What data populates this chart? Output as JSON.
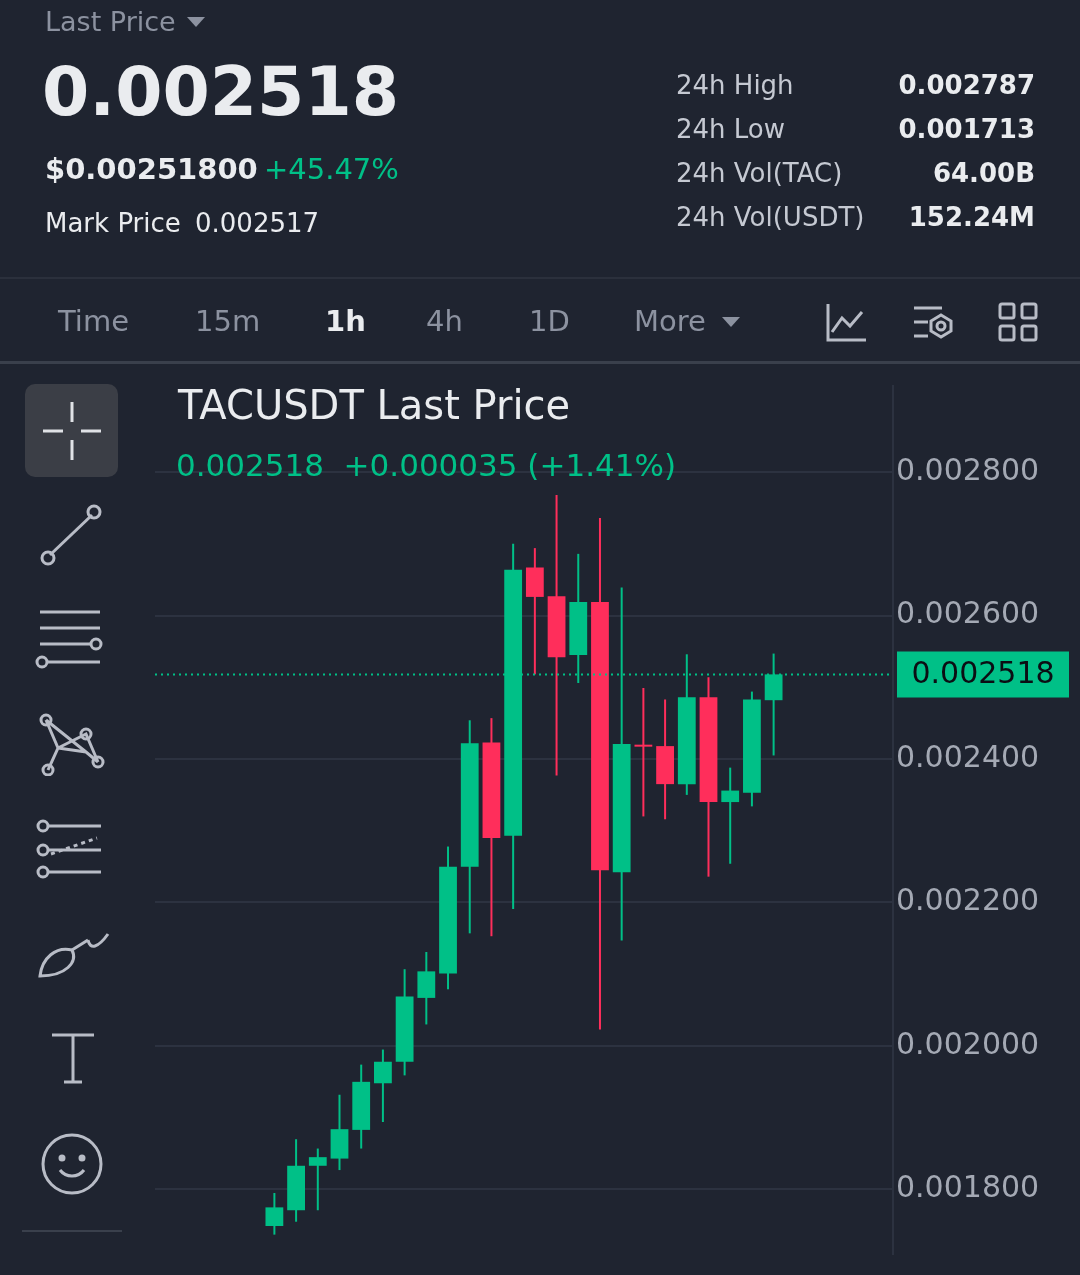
{
  "chart_data": {
    "type": "candlestick",
    "title": "TACUSDT Last Price",
    "subtitle": "0.002518  +0.000035 (+1.41%)",
    "annotations": [
      "Last Price",
      "0.002518",
      "$0.00251800",
      "+45.47%",
      "Mark Price",
      "0.002517",
      "24h High",
      "0.002787",
      "24h Low",
      "0.001713",
      "24h Vol(TAC)",
      "64.00B",
      "24h Vol(USDT)",
      "152.24M",
      "Time",
      "15m",
      "1h",
      "4h",
      "1D",
      "More"
    ],
    "categories": [
      null,
      null,
      null,
      null,
      null,
      null,
      null,
      null,
      null,
      null,
      null,
      null,
      null,
      null,
      null,
      null,
      null,
      null,
      null,
      null,
      null,
      null,
      null,
      null
    ],
    "ohlc": [
      [
        0.001749,
        0.001795,
        0.001737,
        0.001775
      ],
      [
        0.001771,
        0.00187,
        0.001755,
        0.001833
      ],
      [
        0.001833,
        0.001857,
        0.001771,
        0.001845
      ],
      [
        0.001843,
        0.001932,
        0.001827,
        0.001884
      ],
      [
        0.001883,
        0.001974,
        0.001857,
        0.00195
      ],
      [
        0.001948,
        0.001995,
        0.001894,
        0.001978
      ],
      [
        0.001978,
        0.002107,
        0.001959,
        0.002069
      ],
      [
        0.002067,
        0.002131,
        0.00203,
        0.002104
      ],
      [
        0.002101,
        0.002278,
        0.002079,
        0.00225
      ],
      [
        0.00225,
        0.002454,
        0.002157,
        0.002422
      ],
      [
        0.002423,
        0.002457,
        0.002153,
        0.00229
      ],
      [
        0.002293,
        0.0027,
        0.002191,
        0.002664
      ],
      [
        0.002667,
        0.002694,
        0.002518,
        0.002626
      ],
      [
        0.002627,
        0.002768,
        0.002377,
        0.002542
      ],
      [
        0.002545,
        0.002686,
        0.002506,
        0.002619
      ],
      [
        0.002619,
        0.002736,
        0.002023,
        0.002245
      ],
      [
        0.002242,
        0.002639,
        0.002147,
        0.002421
      ],
      [
        0.00242,
        0.002499,
        0.00232,
        0.002419
      ],
      [
        0.002418,
        0.002483,
        0.002316,
        0.002365
      ],
      [
        0.002365,
        0.002546,
        0.00235,
        0.002486
      ],
      [
        0.002486,
        0.002514,
        0.002236,
        0.00234
      ],
      [
        0.00234,
        0.002388,
        0.002254,
        0.002356
      ],
      [
        0.002353,
        0.002494,
        0.002334,
        0.002483
      ],
      [
        0.002482,
        0.002547,
        0.002405,
        0.002518
      ]
    ],
    "colors": [
      "#00c087",
      "#00c087",
      "#00c087",
      "#00c087",
      "#00c087",
      "#00c087",
      "#00c087",
      "#00c087",
      "#00c087",
      "#00c087",
      "#ff2e5b",
      "#00c087",
      "#ff2e5b",
      "#ff2e5b",
      "#00c087",
      "#ff2e5b",
      "#00c087",
      "#ff2e5b",
      "#ff2e5b",
      "#00c087",
      "#ff2e5b",
      "#00c087",
      "#00c087",
      "#00c087"
    ],
    "ylim": [
      0.00171,
      0.00292
    ],
    "yticks": [
      {
        "value": 0.0018,
        "label": "0.001800"
      },
      {
        "value": 0.002,
        "label": "0.002000"
      },
      {
        "value": 0.0022,
        "label": "0.002200"
      },
      {
        "value": 0.0024,
        "label": "0.002400"
      },
      {
        "value": 0.0026,
        "label": "0.002600"
      },
      {
        "value": 0.0028,
        "label": "0.002800"
      }
    ],
    "ref_lines": [
      {
        "axis": "y",
        "value": 0.002518,
        "label": "0.002518",
        "color": "#00c087",
        "line_style": "dotted"
      }
    ],
    "grid": "y",
    "tick_labels": "y"
  }
}
